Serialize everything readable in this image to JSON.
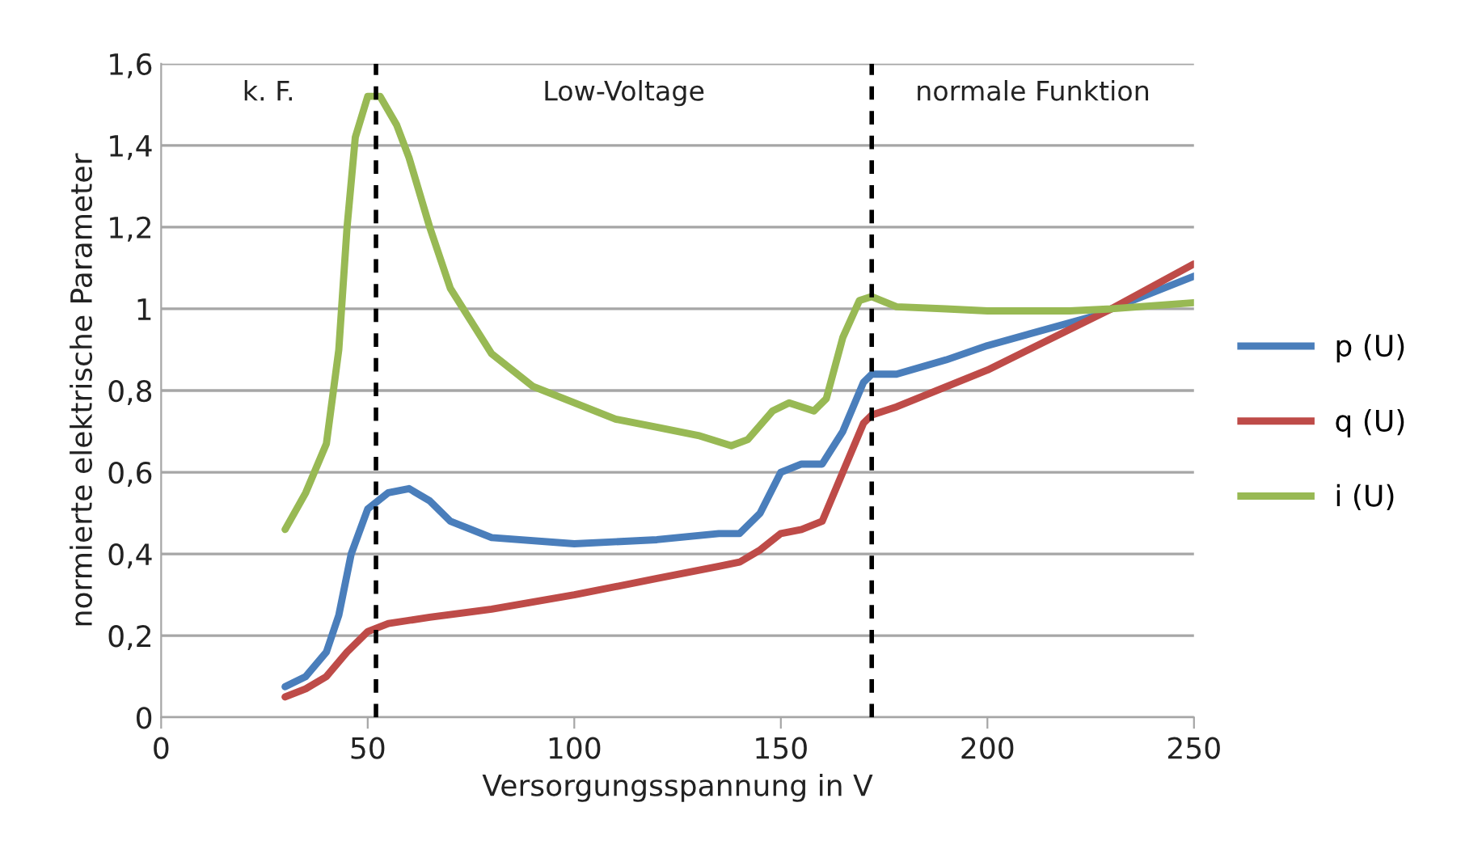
{
  "chart_data": {
    "type": "line",
    "xlabel": "Versorgungsspannung in V",
    "ylabel": "normierte elektrische Parameter",
    "xlim": [
      0,
      250
    ],
    "xticks": [
      0,
      50,
      100,
      150,
      200,
      250
    ],
    "ylim": [
      0,
      1.6
    ],
    "yticks": [
      0,
      {
        "value": 0.2,
        "label": "0,2"
      },
      {
        "value": 0.4,
        "label": "0,4"
      },
      {
        "value": 0.6,
        "label": "0,6"
      },
      {
        "value": 0.8,
        "label": "0,8"
      },
      1,
      {
        "value": 1.2,
        "label": "1,2"
      },
      {
        "value": 1.4,
        "label": "1,4"
      },
      {
        "value": 1.6,
        "label": "1,6"
      }
    ],
    "grid": "y",
    "legend": "right",
    "marker": "none",
    "line_style": "solid",
    "series": [
      {
        "name": "p (U)",
        "color": "#4a7ebb",
        "x": [
          30,
          35,
          40,
          43,
          46,
          50,
          55,
          60,
          65,
          70,
          80,
          100,
          120,
          135,
          140,
          145,
          150,
          155,
          160,
          165,
          170,
          172,
          178,
          190,
          200,
          225,
          250
        ],
        "values": [
          0.075,
          0.1,
          0.16,
          0.25,
          0.4,
          0.51,
          0.55,
          0.56,
          0.53,
          0.48,
          0.44,
          0.425,
          0.435,
          0.45,
          0.45,
          0.5,
          0.6,
          0.62,
          0.62,
          0.7,
          0.82,
          0.84,
          0.84,
          0.875,
          0.91,
          0.98,
          1.08
        ]
      },
      {
        "name": "q (U)",
        "color": "#be4b48",
        "x": [
          30,
          35,
          40,
          45,
          50,
          55,
          65,
          80,
          100,
          120,
          135,
          140,
          145,
          150,
          155,
          160,
          165,
          170,
          172,
          178,
          200,
          230,
          250
        ],
        "values": [
          0.05,
          0.07,
          0.1,
          0.16,
          0.21,
          0.23,
          0.245,
          0.265,
          0.3,
          0.34,
          0.37,
          0.38,
          0.41,
          0.45,
          0.46,
          0.48,
          0.6,
          0.72,
          0.74,
          0.76,
          0.85,
          1.0,
          1.11
        ]
      },
      {
        "name": "i (U)",
        "color": "#98b954",
        "x": [
          30,
          35,
          40,
          43,
          45,
          47,
          50,
          53,
          57,
          60,
          65,
          70,
          80,
          90,
          100,
          110,
          120,
          130,
          138,
          142,
          148,
          152,
          158,
          161,
          165,
          169,
          172,
          178,
          190,
          200,
          220,
          230,
          250
        ],
        "values": [
          0.46,
          0.55,
          0.67,
          0.9,
          1.2,
          1.42,
          1.52,
          1.52,
          1.45,
          1.37,
          1.2,
          1.05,
          0.89,
          0.81,
          0.77,
          0.73,
          0.71,
          0.69,
          0.665,
          0.68,
          0.75,
          0.77,
          0.75,
          0.78,
          0.93,
          1.02,
          1.03,
          1.005,
          1.0,
          0.995,
          0.995,
          1.0,
          1.015
        ]
      }
    ],
    "ref_lines": [
      {
        "axis": "x",
        "value": 52,
        "color": "#000000",
        "line_style": "dashed"
      },
      {
        "axis": "x",
        "value": 172,
        "color": "#000000",
        "line_style": "dashed"
      }
    ],
    "annotations": [
      "k. F.",
      "Low-Voltage",
      "normale Funktion"
    ]
  }
}
